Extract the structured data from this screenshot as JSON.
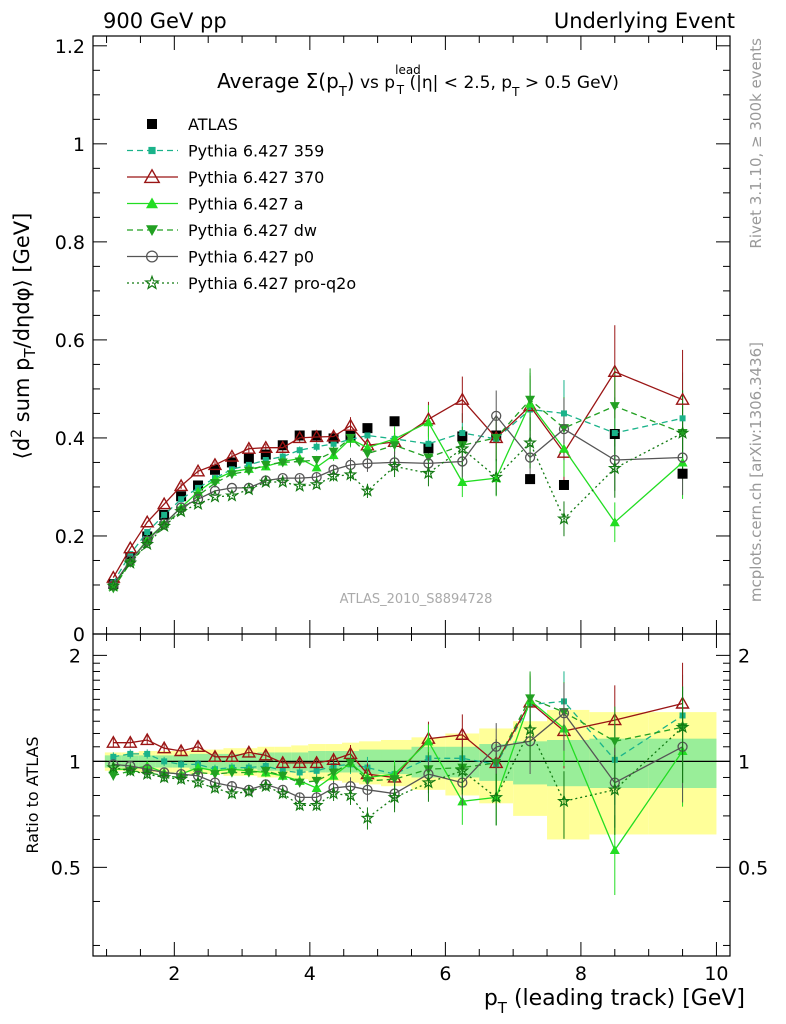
{
  "header": {
    "left": "900 GeV pp",
    "right": "Underlying Event"
  },
  "side_labels": {
    "rivet": "Rivet 3.1.10, ≥ 300k events",
    "mcplots": "mcplots.cern.ch [arXiv:1306.3436]"
  },
  "watermark": "ATLAS_2010_S8894728",
  "chart_data": [
    {
      "type": "line",
      "title": "Average Σ(p_T) vs p_T^lead (|η| < 2.5, p_T > 0.5 GeV)",
      "xlabel": "p_T (leading track) [GeV]",
      "ylabel": "⟨d² sum p_T/dηdφ⟩ [GeV]",
      "xlim": [
        0.8,
        10.2
      ],
      "ylim": [
        0,
        1.22
      ],
      "y_ticks": [
        0,
        0.2,
        0.4,
        0.6,
        0.8,
        1,
        1.2
      ],
      "y_tick_labels": [
        "0",
        "0.2",
        "0.4",
        "0.6",
        "0.8",
        "1",
        "1.2"
      ],
      "legend_position": "top-left",
      "x": [
        1.1,
        1.35,
        1.6,
        1.85,
        2.1,
        2.35,
        2.6,
        2.85,
        3.1,
        3.35,
        3.6,
        3.85,
        4.1,
        4.35,
        4.6,
        4.85,
        5.25,
        5.75,
        6.25,
        6.75,
        7.25,
        7.75,
        8.5,
        9.5
      ],
      "series": [
        {
          "name": "ATLAS",
          "color": "#000000",
          "marker": "square",
          "linestyle": "none",
          "values": [
            0.102,
            0.155,
            0.199,
            0.243,
            0.281,
            0.303,
            0.335,
            0.35,
            0.358,
            0.366,
            0.385,
            0.405,
            0.405,
            0.399,
            0.404,
            0.42,
            0.434,
            0.379,
            0.403,
            0.405,
            0.316,
            0.304,
            0.408,
            0.327
          ]
        },
        {
          "name": "Pythia 6.427 359",
          "color": "#1ab38a",
          "marker": "small-square",
          "linestyle": "dashed",
          "values": [
            0.105,
            0.163,
            0.208,
            0.243,
            0.275,
            0.298,
            0.318,
            0.336,
            0.345,
            0.355,
            0.362,
            0.375,
            0.382,
            0.388,
            0.397,
            0.405,
            0.398,
            0.388,
            0.41,
            0.398,
            0.458,
            0.45,
            0.41,
            0.44
          ]
        },
        {
          "name": "Pythia 6.427 370",
          "color": "#9a1515",
          "marker": "open-triangle-up",
          "linestyle": "solid",
          "values": [
            0.115,
            0.175,
            0.228,
            0.265,
            0.302,
            0.332,
            0.345,
            0.362,
            0.378,
            0.38,
            0.38,
            0.4,
            0.402,
            0.403,
            0.425,
            0.385,
            0.392,
            0.438,
            0.478,
            0.4,
            0.465,
            0.37,
            0.535,
            0.478
          ]
        },
        {
          "name": "Pythia 6.427 a",
          "color": "#22dd22",
          "marker": "triangle-up",
          "linestyle": "solid",
          "values": [
            0.097,
            0.148,
            0.193,
            0.225,
            0.258,
            0.29,
            0.315,
            0.331,
            0.337,
            0.342,
            0.352,
            0.358,
            0.34,
            0.365,
            0.398,
            0.38,
            0.398,
            0.432,
            0.31,
            0.318,
            0.47,
            0.378,
            0.228,
            0.35
          ]
        },
        {
          "name": "Pythia 6.427 dw",
          "color": "#22a022",
          "marker": "triangle-down",
          "linestyle": "dashed",
          "values": [
            0.093,
            0.145,
            0.185,
            0.222,
            0.252,
            0.282,
            0.308,
            0.326,
            0.333,
            0.345,
            0.35,
            0.352,
            0.355,
            0.372,
            0.4,
            0.368,
            0.385,
            0.36,
            0.385,
            0.4,
            0.478,
            0.42,
            0.465,
            0.41
          ]
        },
        {
          "name": "Pythia 6.427 p0",
          "color": "#555555",
          "marker": "open-circle",
          "linestyle": "solid",
          "values": [
            0.1,
            0.15,
            0.19,
            0.225,
            0.258,
            0.275,
            0.292,
            0.298,
            0.298,
            0.313,
            0.318,
            0.318,
            0.32,
            0.335,
            0.345,
            0.348,
            0.35,
            0.348,
            0.352,
            0.445,
            0.36,
            0.418,
            0.355,
            0.36
          ]
        },
        {
          "name": "Pythia 6.427 pro-q2o",
          "color": "#127a12",
          "marker": "star",
          "linestyle": "dotted",
          "values": [
            0.098,
            0.145,
            0.183,
            0.22,
            0.25,
            0.265,
            0.28,
            0.282,
            0.295,
            0.31,
            0.31,
            0.302,
            0.305,
            0.322,
            0.325,
            0.292,
            0.342,
            0.328,
            0.378,
            0.32,
            0.39,
            0.235,
            0.338,
            0.41
          ]
        }
      ]
    },
    {
      "type": "line",
      "title": "",
      "xlabel": "p_T (leading track) [GeV]",
      "ylabel": "Ratio to ATLAS",
      "xlim": [
        0.8,
        10.2
      ],
      "ylim": [
        0.28,
        2.3
      ],
      "x_ticks": [
        2,
        4,
        6,
        8,
        10
      ],
      "y_ticks": [
        0.5,
        1,
        2
      ],
      "y_tick_labels": [
        "0.5",
        "1",
        "2"
      ],
      "band_exp_stat_relative": [
        0.04,
        0.04,
        0.04,
        0.04,
        0.04,
        0.05,
        0.05,
        0.05,
        0.05,
        0.06,
        0.06,
        0.06,
        0.07,
        0.07,
        0.07,
        0.08,
        0.08,
        0.1,
        0.1,
        0.12,
        0.14,
        0.15,
        0.16,
        0.16
      ],
      "band_exp_total_relative": [
        0.06,
        0.06,
        0.07,
        0.07,
        0.07,
        0.08,
        0.08,
        0.09,
        0.09,
        0.1,
        0.1,
        0.11,
        0.12,
        0.12,
        0.13,
        0.14,
        0.15,
        0.17,
        0.2,
        0.24,
        0.3,
        0.4,
        0.38,
        0.38
      ],
      "series": [
        {
          "name": "Pythia 6.427 359",
          "values": [
            1.03,
            1.05,
            1.05,
            1.0,
            0.98,
            0.98,
            0.95,
            0.96,
            0.96,
            0.97,
            0.94,
            0.93,
            0.94,
            0.97,
            0.98,
            0.96,
            0.92,
            1.02,
            1.02,
            0.98,
            1.45,
            1.48,
            1.01,
            1.35
          ]
        },
        {
          "name": "Pythia 6.427 370",
          "values": [
            1.13,
            1.13,
            1.15,
            1.09,
            1.07,
            1.1,
            1.03,
            1.03,
            1.06,
            1.04,
            0.99,
            0.99,
            0.99,
            1.01,
            1.05,
            0.92,
            0.9,
            1.16,
            1.19,
            0.99,
            1.47,
            1.22,
            1.31,
            1.46
          ]
        },
        {
          "name": "Pythia 6.427 a",
          "values": [
            0.95,
            0.95,
            0.97,
            0.93,
            0.92,
            0.96,
            0.94,
            0.95,
            0.94,
            0.93,
            0.91,
            0.88,
            0.84,
            0.91,
            0.99,
            0.9,
            0.92,
            1.14,
            0.77,
            0.79,
            1.49,
            1.24,
            0.56,
            1.07
          ]
        },
        {
          "name": "Pythia 6.427 dw",
          "values": [
            0.91,
            0.94,
            0.93,
            0.91,
            0.9,
            0.93,
            0.92,
            0.93,
            0.93,
            0.94,
            0.91,
            0.87,
            0.88,
            0.93,
            0.99,
            0.88,
            0.89,
            0.95,
            0.96,
            0.99,
            1.51,
            1.38,
            1.14,
            1.25
          ]
        },
        {
          "name": "Pythia 6.427 p0",
          "values": [
            0.98,
            0.97,
            0.95,
            0.93,
            0.92,
            0.91,
            0.87,
            0.85,
            0.83,
            0.86,
            0.83,
            0.79,
            0.79,
            0.84,
            0.85,
            0.83,
            0.81,
            0.92,
            0.87,
            1.1,
            1.14,
            1.37,
            0.87,
            1.1
          ]
        },
        {
          "name": "Pythia 6.427 pro-q2o",
          "values": [
            0.96,
            0.94,
            0.92,
            0.9,
            0.89,
            0.87,
            0.84,
            0.81,
            0.82,
            0.85,
            0.81,
            0.75,
            0.75,
            0.81,
            0.8,
            0.69,
            0.79,
            0.87,
            0.94,
            0.79,
            1.23,
            0.77,
            0.83,
            1.25
          ]
        }
      ]
    }
  ]
}
